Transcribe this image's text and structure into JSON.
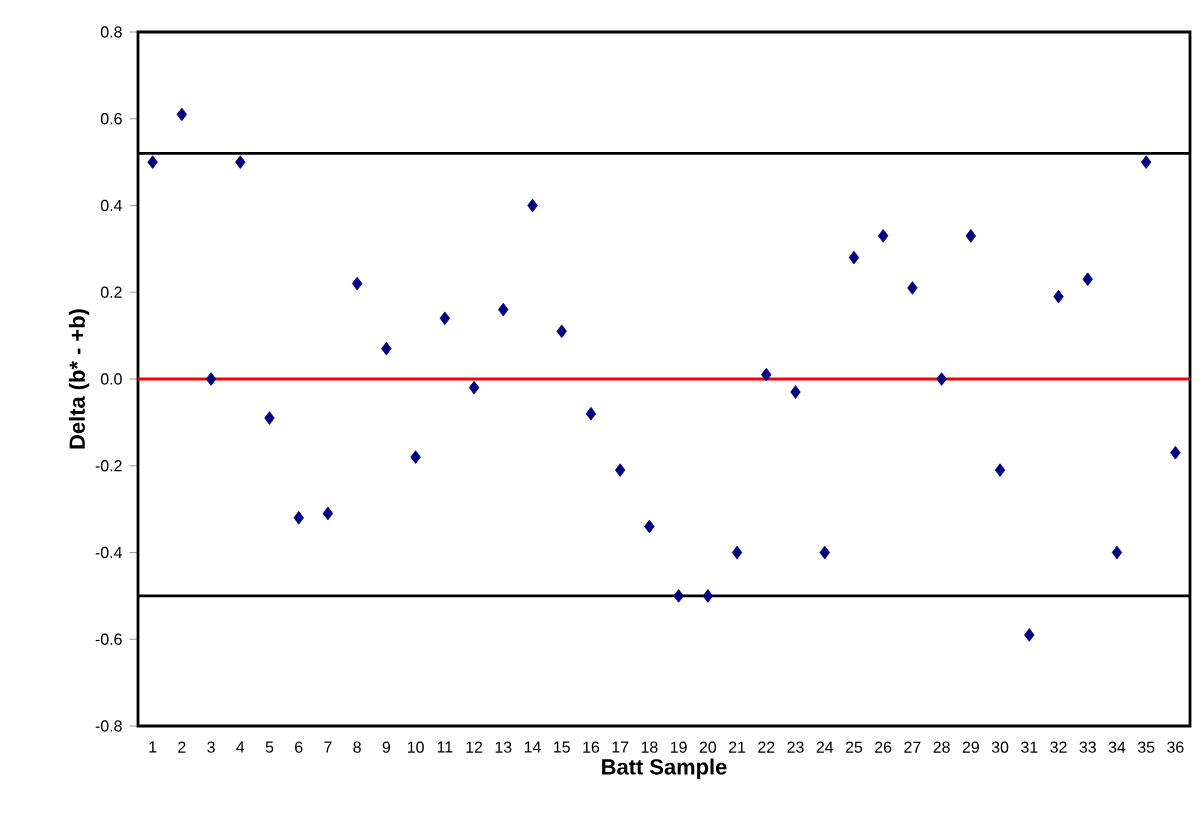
{
  "chart_data": {
    "type": "scatter",
    "xlabel": "Batt Sample",
    "ylabel": "Delta (b* - +b)",
    "categories": [
      "1",
      "2",
      "3",
      "4",
      "5",
      "6",
      "7",
      "8",
      "9",
      "10",
      "11",
      "12",
      "13",
      "14",
      "15",
      "16",
      "17",
      "18",
      "19",
      "20",
      "21",
      "22",
      "23",
      "24",
      "25",
      "26",
      "27",
      "28",
      "29",
      "30",
      "31",
      "32",
      "33",
      "34",
      "35",
      "36"
    ],
    "series": [
      {
        "color": "#000080",
        "values": [
          0.5,
          0.61,
          0.0,
          0.5,
          -0.09,
          -0.32,
          -0.31,
          0.22,
          0.07,
          -0.18,
          0.14,
          -0.02,
          0.16,
          0.4,
          0.11,
          -0.08,
          -0.21,
          -0.34,
          -0.5,
          -0.5,
          -0.4,
          0.01,
          -0.03,
          -0.4,
          0.28,
          0.33,
          0.21,
          0.0,
          0.33,
          -0.21,
          -0.59,
          0.19,
          0.23,
          -0.4,
          0.5,
          -0.17
        ]
      }
    ],
    "ylim": [
      -0.8,
      0.8
    ],
    "yticks": [
      -0.8,
      -0.6,
      -0.4,
      -0.2,
      {
        "value": 0,
        "label": "0.0"
      },
      0.2,
      0.4,
      0.6,
      0.8
    ],
    "ref_lines": [
      {
        "axis": "y",
        "value": 0.52,
        "color": "#000000"
      },
      {
        "axis": "y",
        "value": 0,
        "color": "#ff0000"
      },
      {
        "axis": "y",
        "value": -0.5,
        "color": "#000000"
      }
    ],
    "marker": "diamond"
  }
}
